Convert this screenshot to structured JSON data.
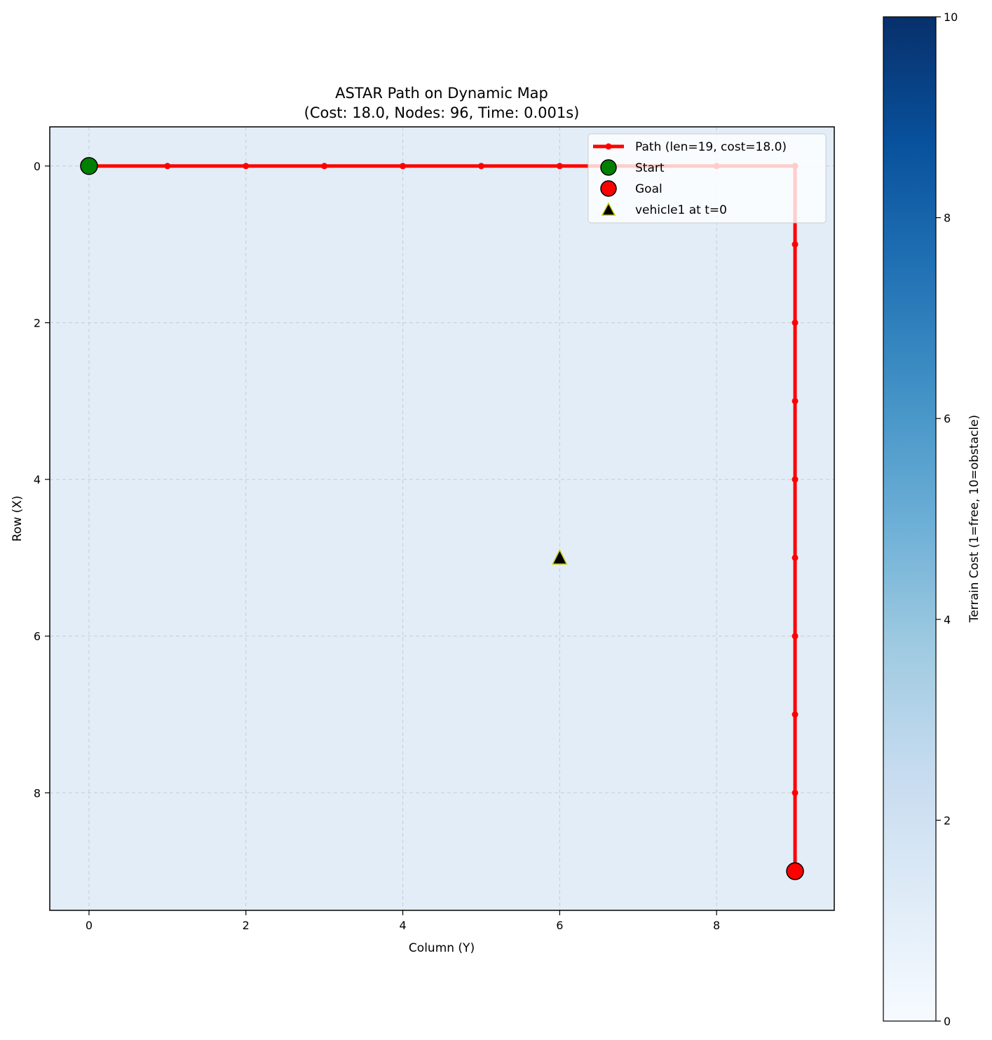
{
  "chart_data": {
    "type": "scatter",
    "title_lines": [
      "ASTAR Path on Dynamic Map",
      "(Cost: 18.0, Nodes: 96, Time: 0.001s)"
    ],
    "xlabel": "Column (Y)",
    "ylabel": "Row (X)",
    "xlim": [
      -0.5,
      9.5
    ],
    "ylim": [
      9.5,
      -0.5
    ],
    "xticks": [
      0,
      2,
      4,
      6,
      8
    ],
    "yticks": [
      0,
      2,
      4,
      6,
      8
    ],
    "grid": true,
    "background_color": "#e2edf8",
    "terrain_value": 1,
    "colormap": "Blues",
    "colorbar": {
      "label": "Terrain Cost (1=free, 10=obstacle)",
      "min": 0,
      "max": 10,
      "ticks": [
        0,
        2,
        4,
        6,
        8,
        10
      ],
      "colors": [
        "#f7fbff",
        "#deebf7",
        "#c6dbef",
        "#9ecae1",
        "#6baed6",
        "#4292c6",
        "#2171b5",
        "#08519c",
        "#08306b"
      ]
    },
    "path": {
      "label": "Path (len=19, cost=18.0)",
      "color": "#ff0000",
      "points": [
        {
          "col": 0,
          "row": 0
        },
        {
          "col": 1,
          "row": 0
        },
        {
          "col": 2,
          "row": 0
        },
        {
          "col": 3,
          "row": 0
        },
        {
          "col": 4,
          "row": 0
        },
        {
          "col": 5,
          "row": 0
        },
        {
          "col": 6,
          "row": 0
        },
        {
          "col": 7,
          "row": 0
        },
        {
          "col": 8,
          "row": 0
        },
        {
          "col": 9,
          "row": 0
        },
        {
          "col": 9,
          "row": 1
        },
        {
          "col": 9,
          "row": 2
        },
        {
          "col": 9,
          "row": 3
        },
        {
          "col": 9,
          "row": 4
        },
        {
          "col": 9,
          "row": 5
        },
        {
          "col": 9,
          "row": 6
        },
        {
          "col": 9,
          "row": 7
        },
        {
          "col": 9,
          "row": 8
        },
        {
          "col": 9,
          "row": 9
        }
      ]
    },
    "start": {
      "label": "Start",
      "col": 0,
      "row": 0,
      "color": "#008000"
    },
    "goal": {
      "label": "Goal",
      "col": 9,
      "row": 9,
      "color": "#ff0000"
    },
    "vehicles": [
      {
        "label": "vehicle1 at t=0",
        "col": 6,
        "row": 5,
        "color": "#000000",
        "edge_color": "#cccc00"
      }
    ],
    "legend_position": "top-right"
  }
}
